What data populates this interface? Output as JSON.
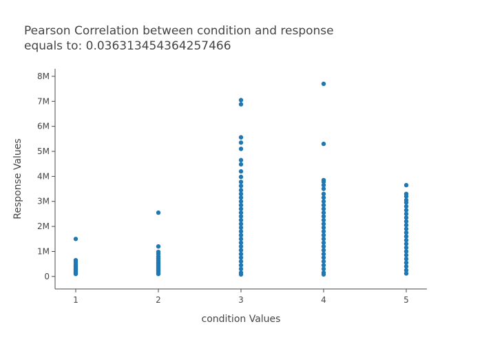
{
  "chart_data": {
    "type": "scatter",
    "title_line1": "Pearson Correlation between condition and response",
    "title_line2": "equals to: 0.036313454364257466",
    "xlabel": "condition Values",
    "ylabel": "Response Values",
    "xlim": [
      0.75,
      5.25
    ],
    "ylim": [
      -500000,
      8300000
    ],
    "x_ticks": [
      1,
      2,
      3,
      4,
      5
    ],
    "x_tick_labels": [
      "1",
      "2",
      "3",
      "4",
      "5"
    ],
    "y_ticks": [
      0,
      1000000,
      2000000,
      3000000,
      4000000,
      5000000,
      6000000,
      7000000,
      8000000
    ],
    "y_tick_labels": [
      "0",
      "1M",
      "2M",
      "3M",
      "4M",
      "5M",
      "6M",
      "7M",
      "8M"
    ],
    "grid": false,
    "marker_color": "#1f77b4",
    "points": [
      {
        "x": 1,
        "y": 1500000
      },
      {
        "x": 1,
        "y": 650000
      },
      {
        "x": 1,
        "y": 580000
      },
      {
        "x": 1,
        "y": 500000
      },
      {
        "x": 1,
        "y": 430000
      },
      {
        "x": 1,
        "y": 380000
      },
      {
        "x": 1,
        "y": 320000
      },
      {
        "x": 1,
        "y": 270000
      },
      {
        "x": 1,
        "y": 220000
      },
      {
        "x": 1,
        "y": 180000
      },
      {
        "x": 1,
        "y": 140000
      },
      {
        "x": 1,
        "y": 100000
      },
      {
        "x": 2,
        "y": 2550000
      },
      {
        "x": 2,
        "y": 1200000
      },
      {
        "x": 2,
        "y": 980000
      },
      {
        "x": 2,
        "y": 900000
      },
      {
        "x": 2,
        "y": 800000
      },
      {
        "x": 2,
        "y": 720000
      },
      {
        "x": 2,
        "y": 640000
      },
      {
        "x": 2,
        "y": 580000
      },
      {
        "x": 2,
        "y": 520000
      },
      {
        "x": 2,
        "y": 460000
      },
      {
        "x": 2,
        "y": 400000
      },
      {
        "x": 2,
        "y": 350000
      },
      {
        "x": 2,
        "y": 300000
      },
      {
        "x": 2,
        "y": 250000
      },
      {
        "x": 2,
        "y": 200000
      },
      {
        "x": 2,
        "y": 150000
      },
      {
        "x": 2,
        "y": 100000
      },
      {
        "x": 3,
        "y": 7050000
      },
      {
        "x": 3,
        "y": 6880000
      },
      {
        "x": 3,
        "y": 5560000
      },
      {
        "x": 3,
        "y": 5350000
      },
      {
        "x": 3,
        "y": 5100000
      },
      {
        "x": 3,
        "y": 4650000
      },
      {
        "x": 3,
        "y": 4480000
      },
      {
        "x": 3,
        "y": 4200000
      },
      {
        "x": 3,
        "y": 3980000
      },
      {
        "x": 3,
        "y": 3780000
      },
      {
        "x": 3,
        "y": 3620000
      },
      {
        "x": 3,
        "y": 3450000
      },
      {
        "x": 3,
        "y": 3300000
      },
      {
        "x": 3,
        "y": 3150000
      },
      {
        "x": 3,
        "y": 3000000
      },
      {
        "x": 3,
        "y": 2850000
      },
      {
        "x": 3,
        "y": 2700000
      },
      {
        "x": 3,
        "y": 2550000
      },
      {
        "x": 3,
        "y": 2400000
      },
      {
        "x": 3,
        "y": 2250000
      },
      {
        "x": 3,
        "y": 2100000
      },
      {
        "x": 3,
        "y": 1950000
      },
      {
        "x": 3,
        "y": 1800000
      },
      {
        "x": 3,
        "y": 1650000
      },
      {
        "x": 3,
        "y": 1500000
      },
      {
        "x": 3,
        "y": 1350000
      },
      {
        "x": 3,
        "y": 1200000
      },
      {
        "x": 3,
        "y": 1050000
      },
      {
        "x": 3,
        "y": 900000
      },
      {
        "x": 3,
        "y": 750000
      },
      {
        "x": 3,
        "y": 600000
      },
      {
        "x": 3,
        "y": 450000
      },
      {
        "x": 3,
        "y": 300000
      },
      {
        "x": 3,
        "y": 150000
      },
      {
        "x": 3,
        "y": 80000
      },
      {
        "x": 4,
        "y": 7700000
      },
      {
        "x": 4,
        "y": 5300000
      },
      {
        "x": 4,
        "y": 3850000
      },
      {
        "x": 4,
        "y": 3780000
      },
      {
        "x": 4,
        "y": 3650000
      },
      {
        "x": 4,
        "y": 3500000
      },
      {
        "x": 4,
        "y": 3300000
      },
      {
        "x": 4,
        "y": 3150000
      },
      {
        "x": 4,
        "y": 3000000
      },
      {
        "x": 4,
        "y": 2850000
      },
      {
        "x": 4,
        "y": 2700000
      },
      {
        "x": 4,
        "y": 2550000
      },
      {
        "x": 4,
        "y": 2400000
      },
      {
        "x": 4,
        "y": 2250000
      },
      {
        "x": 4,
        "y": 2100000
      },
      {
        "x": 4,
        "y": 1950000
      },
      {
        "x": 4,
        "y": 1800000
      },
      {
        "x": 4,
        "y": 1650000
      },
      {
        "x": 4,
        "y": 1500000
      },
      {
        "x": 4,
        "y": 1350000
      },
      {
        "x": 4,
        "y": 1200000
      },
      {
        "x": 4,
        "y": 1050000
      },
      {
        "x": 4,
        "y": 900000
      },
      {
        "x": 4,
        "y": 750000
      },
      {
        "x": 4,
        "y": 600000
      },
      {
        "x": 4,
        "y": 450000
      },
      {
        "x": 4,
        "y": 300000
      },
      {
        "x": 4,
        "y": 150000
      },
      {
        "x": 4,
        "y": 80000
      },
      {
        "x": 5,
        "y": 3650000
      },
      {
        "x": 5,
        "y": 3300000
      },
      {
        "x": 5,
        "y": 3200000
      },
      {
        "x": 5,
        "y": 3050000
      },
      {
        "x": 5,
        "y": 2950000
      },
      {
        "x": 5,
        "y": 2800000
      },
      {
        "x": 5,
        "y": 2650000
      },
      {
        "x": 5,
        "y": 2500000
      },
      {
        "x": 5,
        "y": 2350000
      },
      {
        "x": 5,
        "y": 2200000
      },
      {
        "x": 5,
        "y": 2050000
      },
      {
        "x": 5,
        "y": 1900000
      },
      {
        "x": 5,
        "y": 1750000
      },
      {
        "x": 5,
        "y": 1600000
      },
      {
        "x": 5,
        "y": 1450000
      },
      {
        "x": 5,
        "y": 1300000
      },
      {
        "x": 5,
        "y": 1150000
      },
      {
        "x": 5,
        "y": 1000000
      },
      {
        "x": 5,
        "y": 850000
      },
      {
        "x": 5,
        "y": 700000
      },
      {
        "x": 5,
        "y": 550000
      },
      {
        "x": 5,
        "y": 400000
      },
      {
        "x": 5,
        "y": 250000
      },
      {
        "x": 5,
        "y": 120000
      }
    ]
  }
}
